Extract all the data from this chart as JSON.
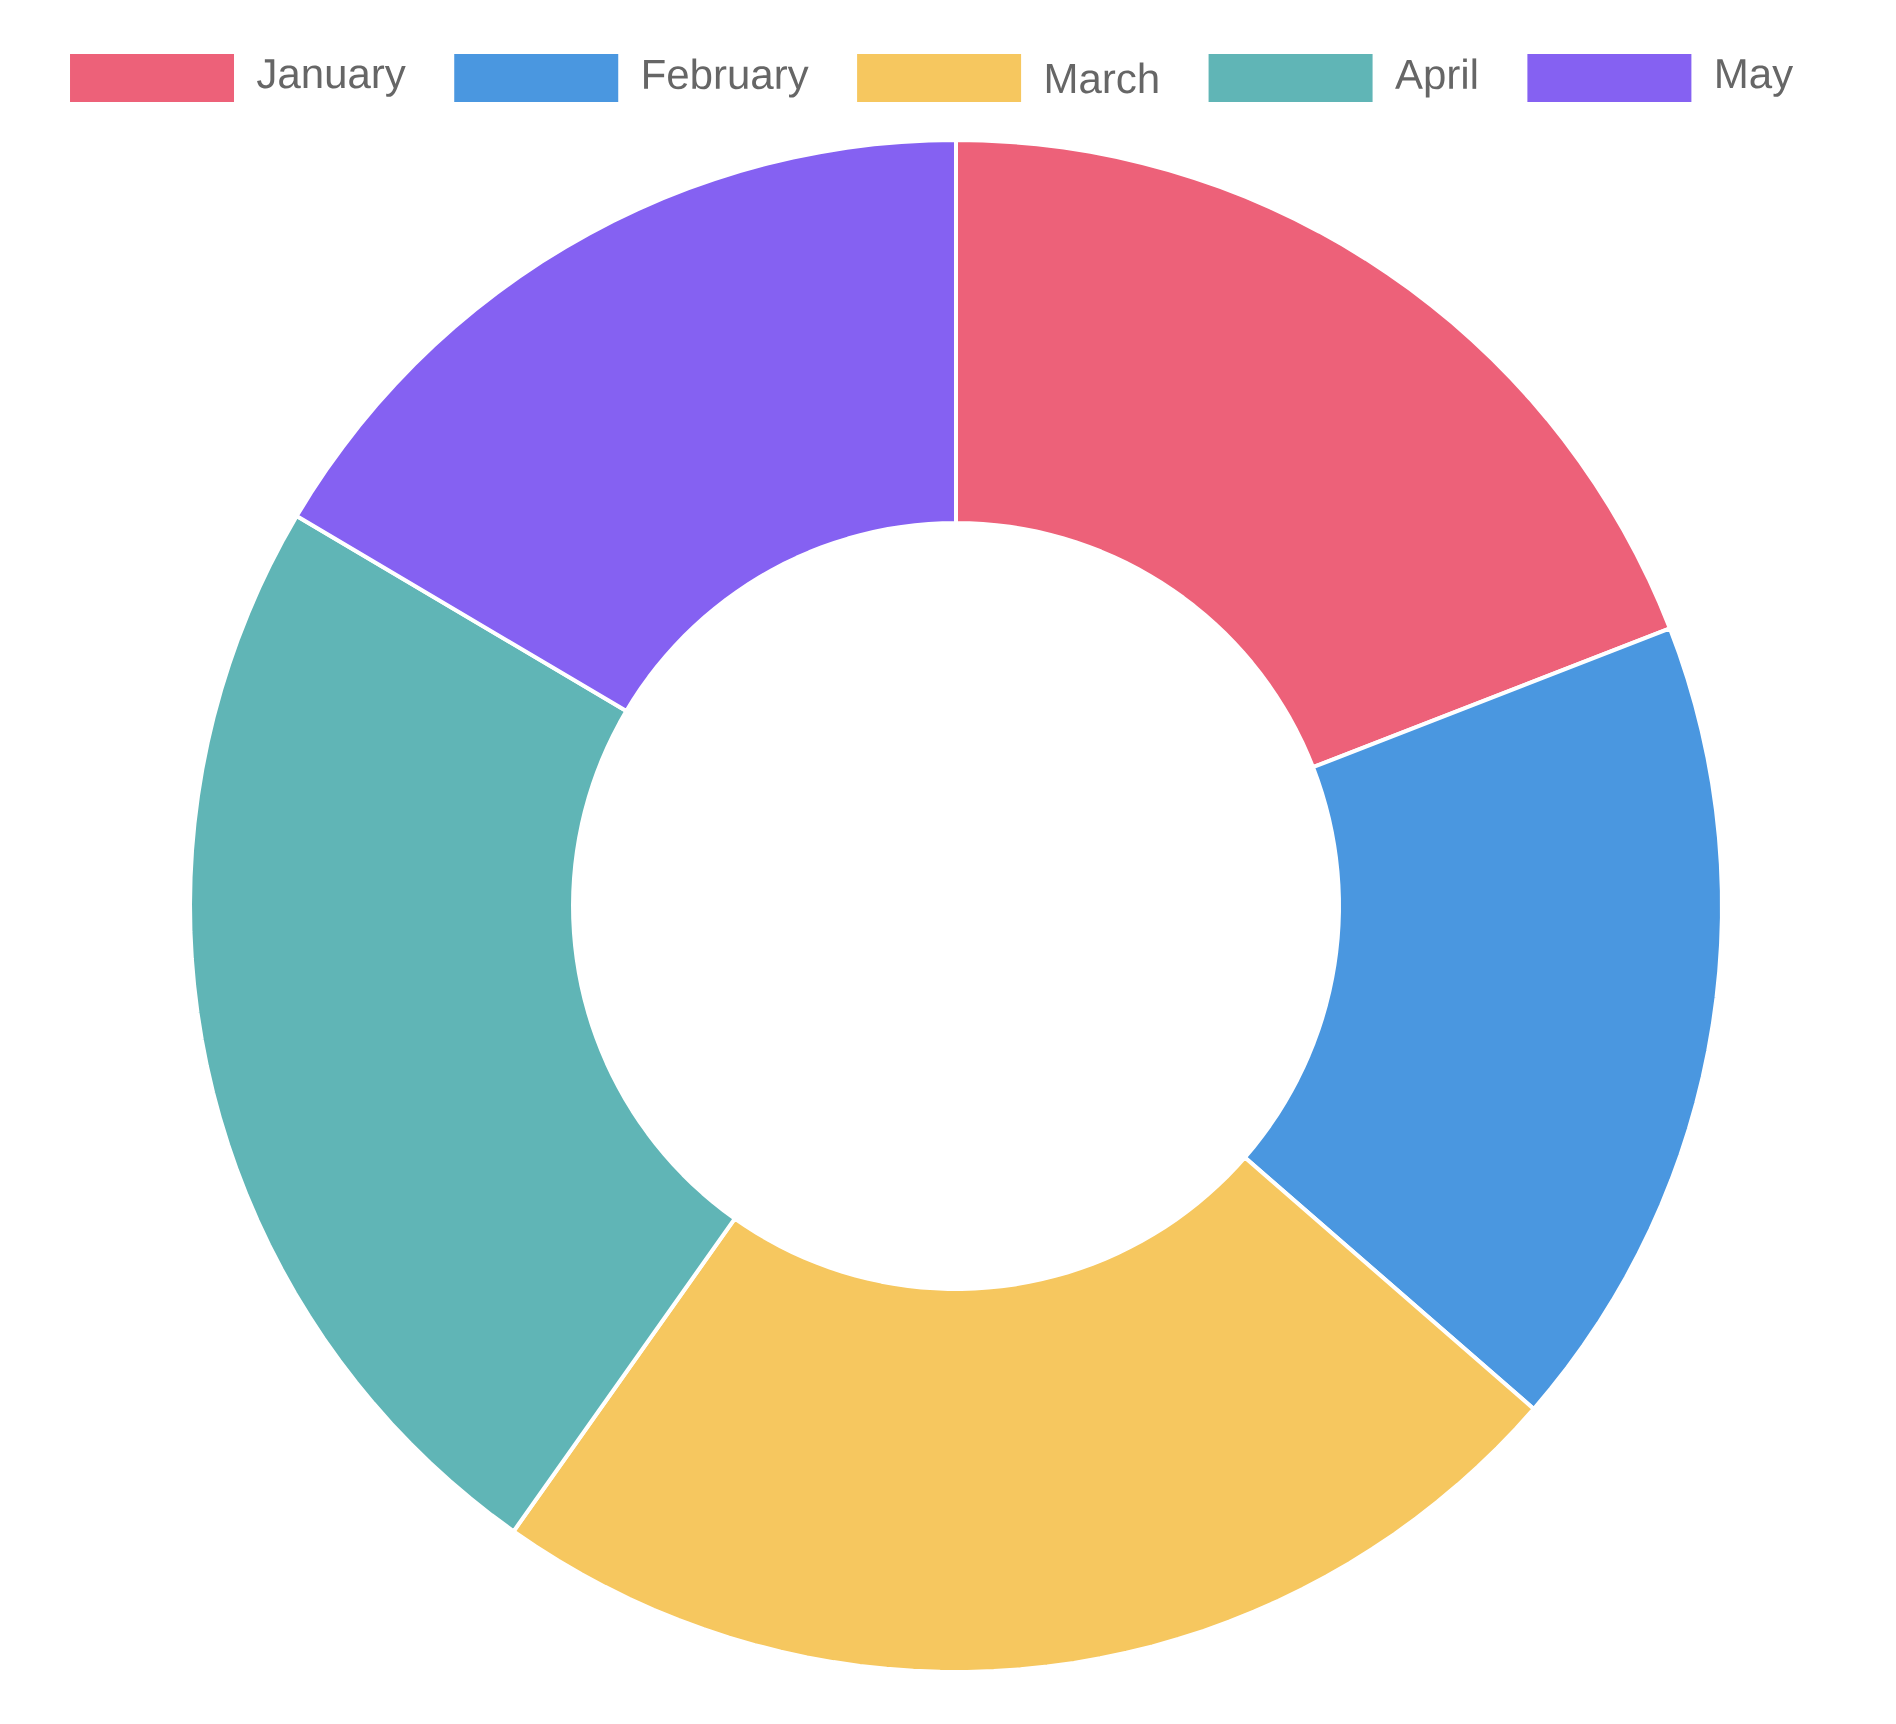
{
  "chart_data": {
    "type": "donut",
    "categories": [
      "January",
      "February",
      "March",
      "April",
      "May"
    ],
    "values": [
      19.1,
      17.3,
      23.4,
      23.7,
      16.5
    ],
    "colors": [
      "#ed6179",
      "#4a97e0",
      "#f6c75f",
      "#60b5b6",
      "#8561f2"
    ],
    "legend": "top"
  }
}
